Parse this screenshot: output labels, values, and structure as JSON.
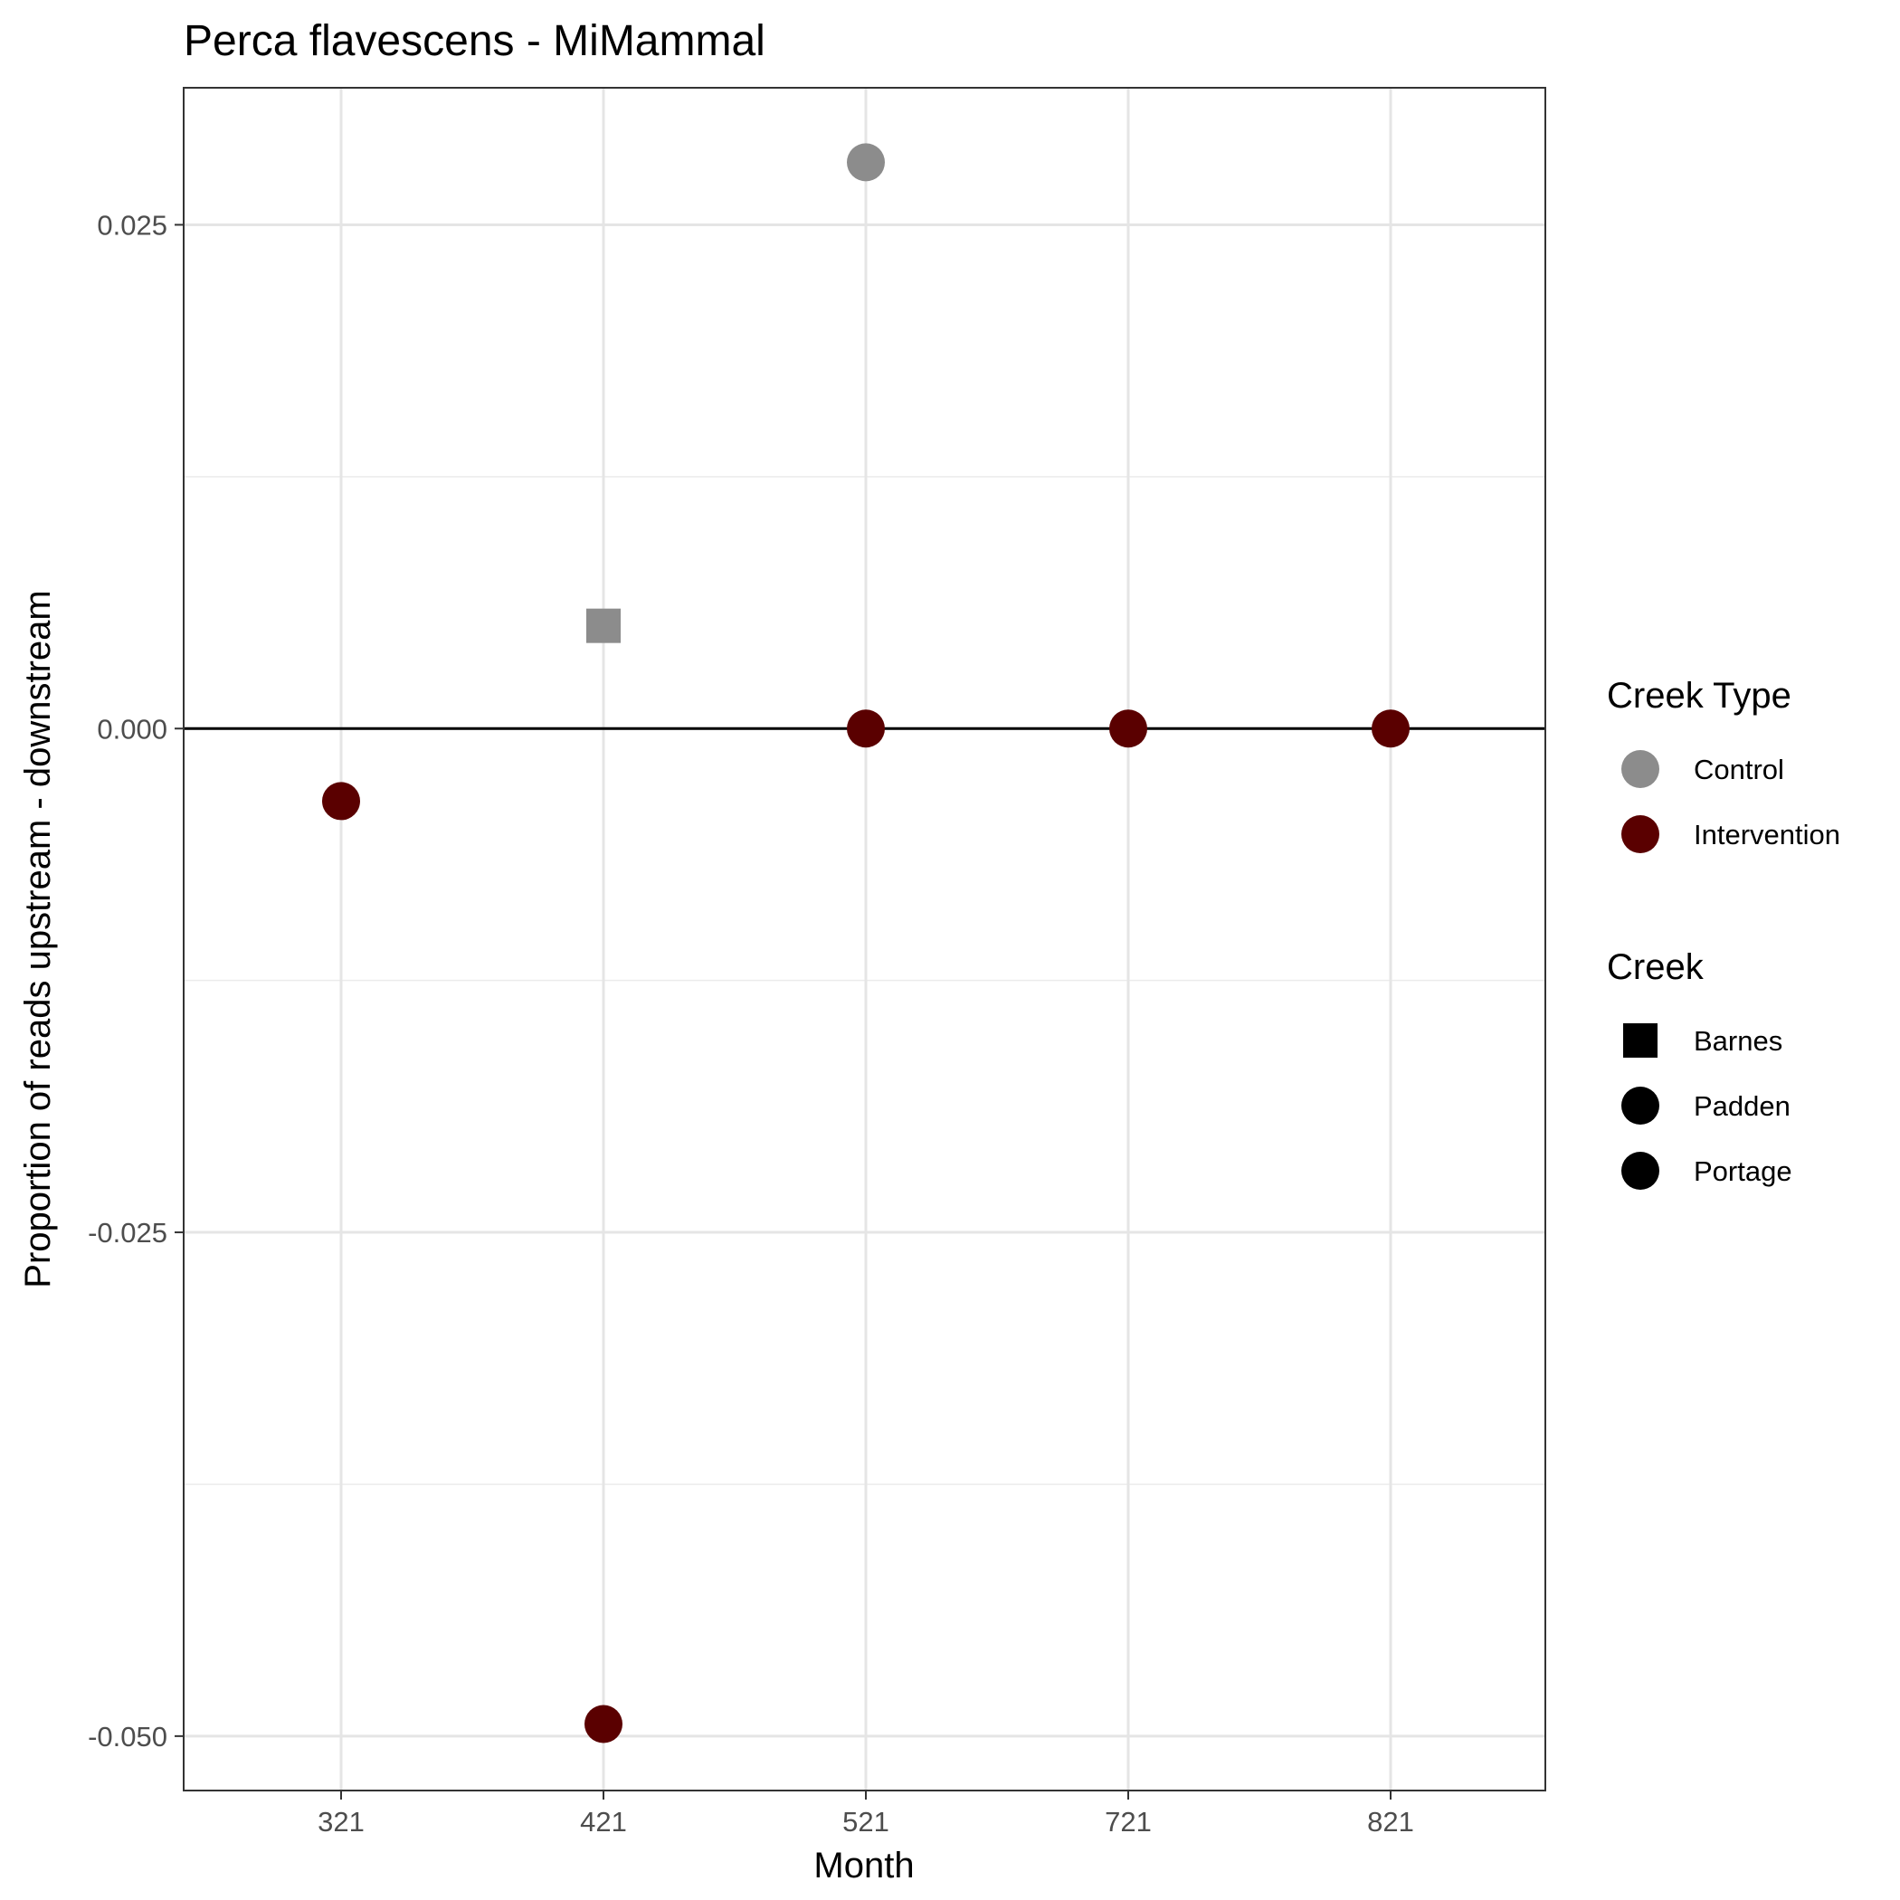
{
  "chart_data": {
    "type": "scatter",
    "title": "Perca flavescens - MiMammal",
    "xlabel": "Month",
    "ylabel": "Proportion of reads upstream - downstream",
    "categories": [
      "321",
      "421",
      "521",
      "721",
      "821"
    ],
    "y_ticks": [
      {
        "value": 0.025,
        "label": "0.025"
      },
      {
        "value": 0.0,
        "label": "0.000"
      },
      {
        "value": -0.025,
        "label": "-0.025"
      },
      {
        "value": -0.05,
        "label": "-0.050"
      }
    ],
    "ylim": [
      -0.0527,
      0.0318
    ],
    "grid": true,
    "hline": 0,
    "colors": {
      "Control": "#8c8c8c",
      "Intervention": "#5a0000"
    },
    "points": [
      {
        "x": "321",
        "y": -0.0036,
        "creek_type": "Intervention",
        "creek": "Padden"
      },
      {
        "x": "421",
        "y": 0.0051,
        "creek_type": "Control",
        "creek": "Barnes"
      },
      {
        "x": "421",
        "y": -0.0494,
        "creek_type": "Intervention",
        "creek": "Padden"
      },
      {
        "x": "521",
        "y": 0.0281,
        "creek_type": "Control",
        "creek": "Portage"
      },
      {
        "x": "521",
        "y": 0.0,
        "creek_type": "Intervention",
        "creek": "Padden"
      },
      {
        "x": "721",
        "y": 0.0,
        "creek_type": "Intervention",
        "creek": "Padden"
      },
      {
        "x": "821",
        "y": 0.0,
        "creek_type": "Intervention",
        "creek": "Padden"
      }
    ],
    "legend": {
      "placement": "right",
      "color_title": "Creek Type",
      "color_items": [
        {
          "label": "Control",
          "color": "#8c8c8c"
        },
        {
          "label": "Intervention",
          "color": "#5a0000"
        }
      ],
      "shape_title": "Creek",
      "shape_items": [
        {
          "label": "Barnes",
          "shape": "square"
        },
        {
          "label": "Padden",
          "shape": "circle"
        },
        {
          "label": "Portage",
          "shape": "circle"
        }
      ]
    }
  }
}
